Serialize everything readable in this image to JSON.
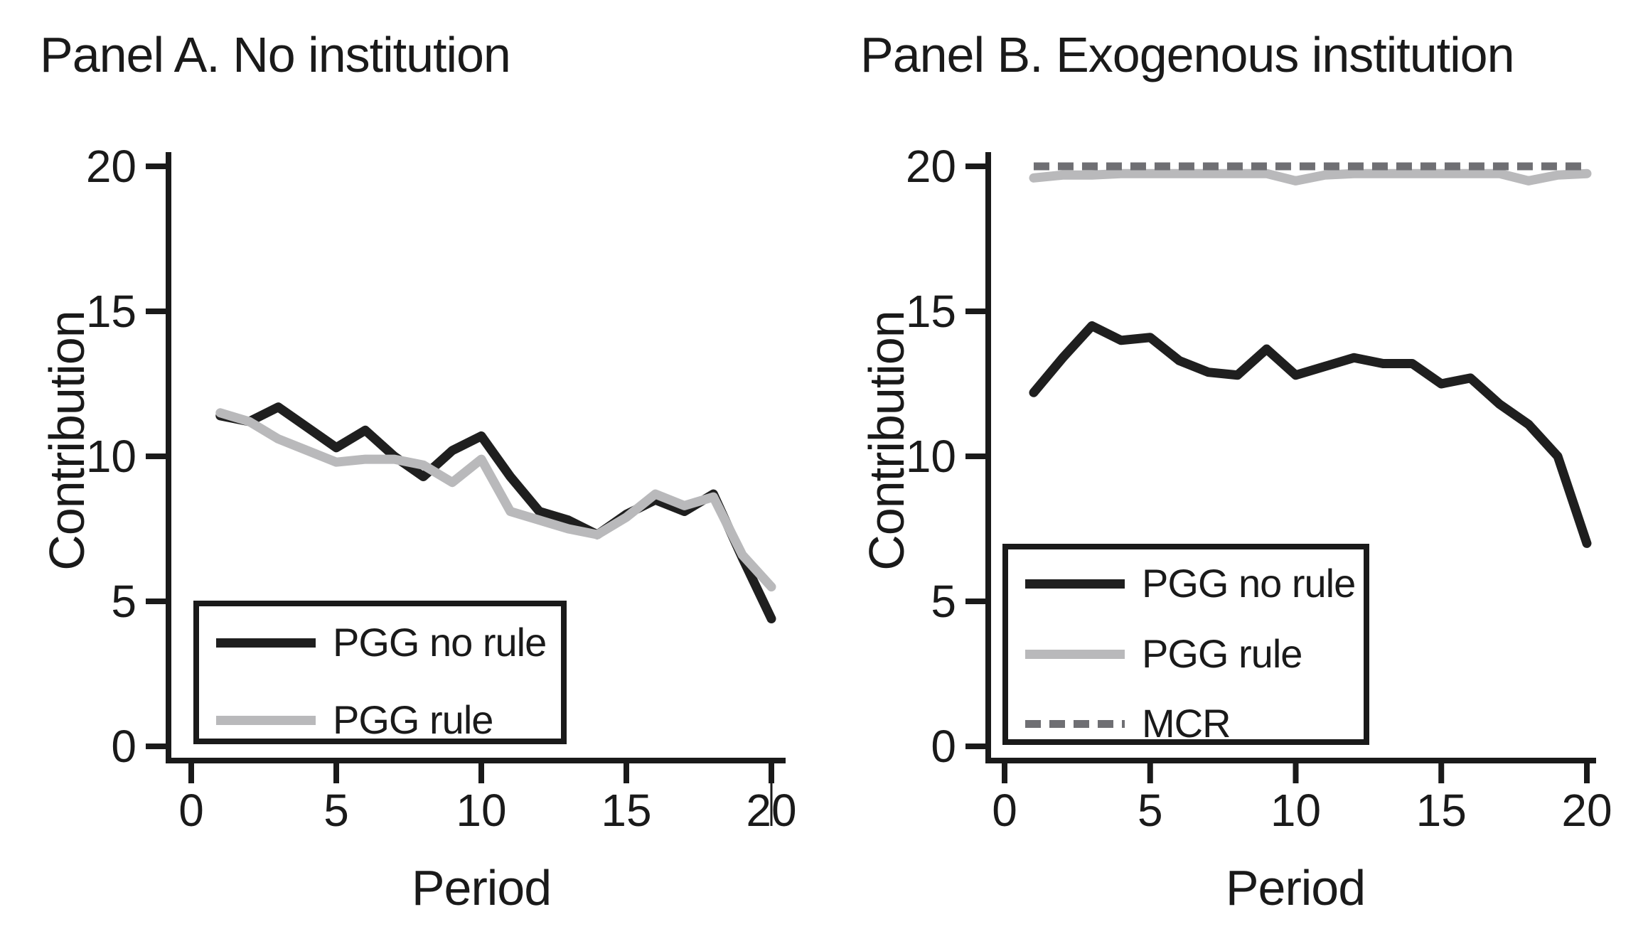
{
  "figure": {
    "background": "#ffffff",
    "text_color": "#1a1a1a",
    "axis_color": "#1a1a1a"
  },
  "chart_data": [
    {
      "type": "line",
      "title": "Panel A. No institution",
      "xlabel": "Period",
      "ylabel": "Contribution",
      "xlim": [
        0,
        20
      ],
      "ylim": [
        0,
        20
      ],
      "x_ticks": [
        0,
        5,
        10,
        15,
        20
      ],
      "y_ticks": [
        0,
        5,
        10,
        15,
        20
      ],
      "grid": false,
      "legend_position": "inside-bottom-left",
      "x": [
        1,
        2,
        3,
        4,
        5,
        6,
        7,
        8,
        9,
        10,
        11,
        12,
        13,
        14,
        15,
        16,
        17,
        18,
        19,
        20
      ],
      "series": [
        {
          "name": "PGG no rule",
          "color": "#1f1f1f",
          "style": "solid",
          "values": [
            11.4,
            11.2,
            11.7,
            11.0,
            10.3,
            10.9,
            10.0,
            9.3,
            10.2,
            10.7,
            9.3,
            8.1,
            7.8,
            7.3,
            8.0,
            8.5,
            8.1,
            8.7,
            6.5,
            4.4
          ]
        },
        {
          "name": "PGG rule",
          "color": "#b9b9bb",
          "style": "solid",
          "values": [
            11.5,
            11.2,
            10.6,
            10.2,
            9.8,
            9.9,
            9.9,
            9.7,
            9.1,
            9.9,
            8.1,
            7.8,
            7.5,
            7.3,
            7.9,
            8.7,
            8.3,
            8.6,
            6.6,
            5.5
          ]
        }
      ]
    },
    {
      "type": "line",
      "title": "Panel B. Exogenous institution",
      "xlabel": "Period",
      "ylabel": "Contribution",
      "xlim": [
        0,
        20
      ],
      "ylim": [
        0,
        20
      ],
      "x_ticks": [
        0,
        5,
        10,
        15,
        20
      ],
      "y_ticks": [
        0,
        5,
        10,
        15,
        20
      ],
      "grid": false,
      "legend_position": "inside-bottom-left",
      "x": [
        1,
        2,
        3,
        4,
        5,
        6,
        7,
        8,
        9,
        10,
        11,
        12,
        13,
        14,
        15,
        16,
        17,
        18,
        19,
        20
      ],
      "series": [
        {
          "name": "PGG no rule",
          "color": "#1f1f1f",
          "style": "solid",
          "values": [
            12.2,
            13.4,
            14.5,
            14.0,
            14.1,
            13.3,
            12.9,
            12.8,
            13.7,
            12.8,
            13.1,
            13.4,
            13.2,
            13.2,
            12.5,
            12.7,
            11.8,
            11.1,
            10.0,
            7.0
          ]
        },
        {
          "name": "PGG rule",
          "color": "#b9b9bb",
          "style": "solid",
          "values": [
            19.6,
            19.7,
            19.7,
            19.75,
            19.75,
            19.75,
            19.75,
            19.75,
            19.75,
            19.5,
            19.7,
            19.75,
            19.75,
            19.75,
            19.75,
            19.75,
            19.75,
            19.5,
            19.7,
            19.75
          ]
        },
        {
          "name": "MCR",
          "color": "#6f6f73",
          "style": "dashed",
          "values": [
            20,
            20,
            20,
            20,
            20,
            20,
            20,
            20,
            20,
            20,
            20,
            20,
            20,
            20,
            20,
            20,
            20,
            20,
            20,
            20
          ]
        }
      ]
    }
  ]
}
